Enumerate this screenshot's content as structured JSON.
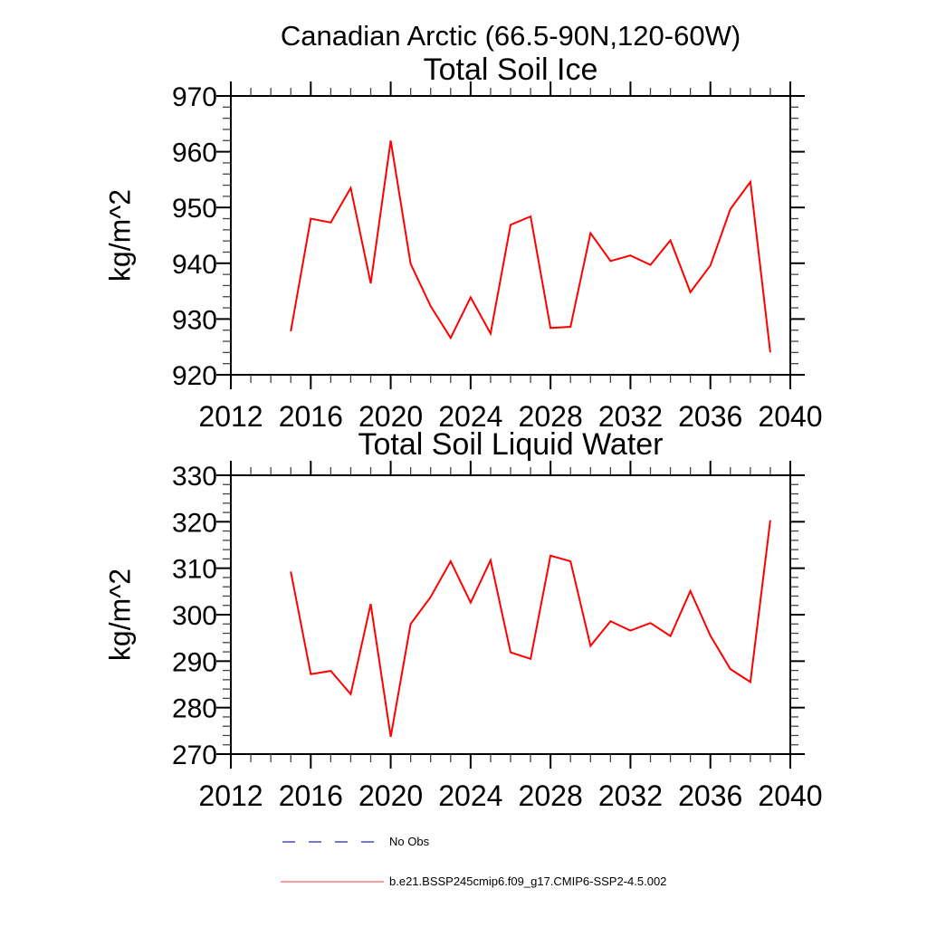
{
  "figure": {
    "main_title": "Canadian Arctic (66.5-90N,120-60W)",
    "background": "#ffffff"
  },
  "chart_data": [
    {
      "type": "line",
      "title": "Total Soil Ice",
      "ylabel": "kg/m^2",
      "xlim": [
        2012,
        2040
      ],
      "ylim": [
        920,
        970
      ],
      "x_major_step": 4,
      "x_minor_step": 1,
      "y_major_step": 10,
      "y_minor_step": 2,
      "grid": false,
      "x": [
        2015,
        2016,
        2017,
        2018,
        2019,
        2020,
        2021,
        2022,
        2023,
        2024,
        2025,
        2026,
        2027,
        2028,
        2029,
        2030,
        2031,
        2032,
        2033,
        2034,
        2035,
        2036,
        2037,
        2038,
        2039
      ],
      "series": [
        {
          "name": "b.e21.BSSP245cmip6.f09_g17.CMIP6-SSP2-4.5.002",
          "color": "#ff0000",
          "values": [
            927.8,
            948.0,
            947.3,
            953.5,
            936.4,
            962.0,
            939.9,
            932.3,
            926.6,
            933.9,
            927.4,
            946.9,
            948.4,
            928.4,
            928.6,
            945.4,
            940.4,
            941.4,
            939.7,
            944.1,
            934.8,
            939.6,
            949.7,
            954.6,
            924.0
          ]
        }
      ]
    },
    {
      "type": "line",
      "title": "Total Soil Liquid Water",
      "ylabel": "kg/m^2",
      "xlim": [
        2012,
        2040
      ],
      "ylim": [
        270,
        330
      ],
      "x_major_step": 4,
      "x_minor_step": 1,
      "y_major_step": 10,
      "y_minor_step": 2,
      "grid": false,
      "x": [
        2015,
        2016,
        2017,
        2018,
        2019,
        2020,
        2021,
        2022,
        2023,
        2024,
        2025,
        2026,
        2027,
        2028,
        2029,
        2030,
        2031,
        2032,
        2033,
        2034,
        2035,
        2036,
        2037,
        2038,
        2039
      ],
      "series": [
        {
          "name": "b.e21.BSSP245cmip6.f09_g17.CMIP6-SSP2-4.5.002",
          "color": "#ff0000",
          "values": [
            309.3,
            287.2,
            287.9,
            282.9,
            302.3,
            273.7,
            298.0,
            303.8,
            311.5,
            302.6,
            311.7,
            291.9,
            290.5,
            312.7,
            311.5,
            293.3,
            298.6,
            296.6,
            298.2,
            295.4,
            305.1,
            295.5,
            288.3,
            285.5,
            320.3
          ]
        }
      ]
    }
  ],
  "legend": {
    "items": [
      {
        "label": "No Obs",
        "color": "#7575d8",
        "style": "dashed"
      },
      {
        "label": "b.e21.BSSP245cmip6.f09_g17.CMIP6-SSP2-4.5.002",
        "color": "#f08080",
        "style": "solid"
      }
    ]
  }
}
